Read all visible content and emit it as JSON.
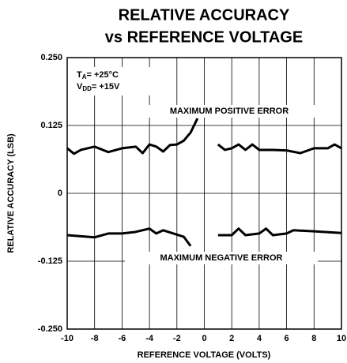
{
  "chart_data": {
    "type": "line",
    "title": [
      "RELATIVE ACCURACY",
      "vs REFERENCE VOLTAGE"
    ],
    "xlabel": "REFERENCE VOLTAGE (VOLTS)",
    "ylabel": "RELATIVE ACCURACY (LSB)",
    "xlim": [
      -10,
      10
    ],
    "xticks": [
      -10,
      -8,
      -6,
      -4,
      -2,
      0,
      2,
      4,
      6,
      8,
      10
    ],
    "ylim": [
      -0.25,
      0.25
    ],
    "yticks": [
      {
        "value": -0.25,
        "label": "-0.250"
      },
      {
        "value": -0.125,
        "label": "-0.125"
      },
      0,
      {
        "value": 0.125,
        "label": "0.125"
      },
      {
        "value": 0.25,
        "label": "0.250"
      }
    ],
    "grid": true,
    "conditions": [
      {
        "main": "T",
        "sub": "A",
        "rest": "= +25°C"
      },
      {
        "main": "V",
        "sub": "DD",
        "rest": "= +15V"
      }
    ],
    "series": [
      {
        "name": "MAXIMUM POSITIVE ERROR",
        "color": "#000000",
        "x": [
          -10,
          -9.5,
          -9,
          -8,
          -7,
          -6,
          -5,
          -4.5,
          -4,
          -3.5,
          -3,
          -2.5,
          -2,
          -1.5,
          -1,
          -0.5,
          0,
          1,
          1.5,
          2,
          2.5,
          3,
          3.5,
          4,
          5,
          6,
          7,
          8,
          9,
          9.5,
          10
        ],
        "values": [
          0.083,
          0.073,
          0.08,
          0.086,
          0.076,
          0.083,
          0.086,
          0.074,
          0.09,
          0.086,
          0.077,
          0.089,
          0.09,
          0.097,
          0.112,
          0.138,
          null,
          0.09,
          0.08,
          0.083,
          0.09,
          0.08,
          0.09,
          0.08,
          0.08,
          0.079,
          0.074,
          0.083,
          0.083,
          0.09,
          0.083
        ]
      },
      {
        "name": "MAXIMUM NEGATIVE ERROR",
        "color": "#000000",
        "x": [
          -10,
          -8,
          -7,
          -6,
          -5,
          -4,
          -3.5,
          -3,
          -2,
          -1.5,
          -1,
          0,
          1,
          2,
          2.5,
          3,
          4,
          4.5,
          5,
          6,
          6.5,
          8,
          10
        ],
        "values": [
          -0.077,
          -0.081,
          -0.074,
          -0.074,
          -0.071,
          -0.065,
          -0.074,
          -0.068,
          -0.076,
          -0.08,
          -0.097,
          null,
          -0.077,
          -0.077,
          -0.065,
          -0.077,
          -0.074,
          -0.065,
          -0.077,
          -0.074,
          -0.068,
          -0.07,
          -0.073
        ]
      }
    ]
  }
}
